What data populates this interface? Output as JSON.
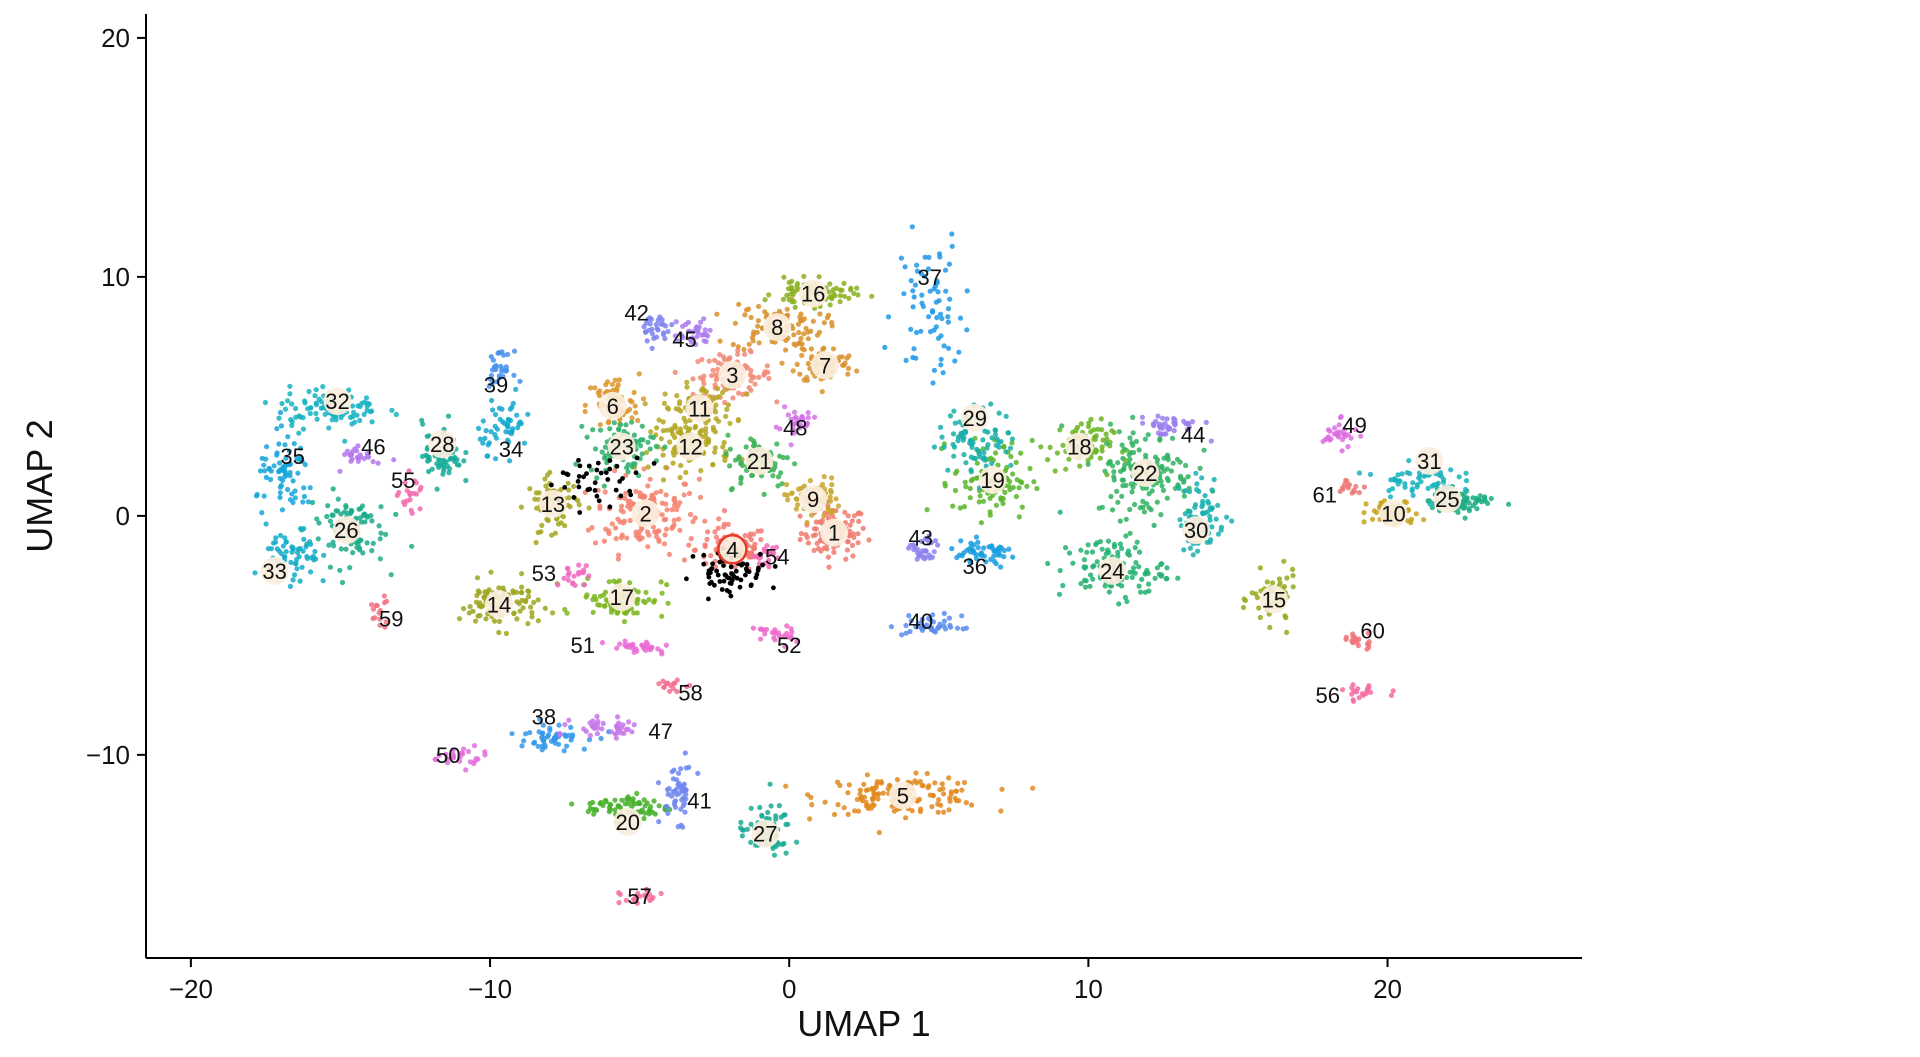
{
  "chart_data": {
    "type": "scatter",
    "title": "",
    "xlabel": "UMAP 1",
    "ylabel": "UMAP 2",
    "xlim": [
      -21.5,
      26.5
    ],
    "ylim": [
      -18.5,
      21
    ],
    "xticks": [
      -20,
      -10,
      0,
      10,
      20
    ],
    "yticks": [
      -10,
      0,
      10,
      20
    ],
    "xtick_labels": [
      "−20",
      "−10",
      "0",
      "10",
      "20"
    ],
    "ytick_labels": [
      "−10",
      "0",
      "10",
      "20"
    ],
    "grid": false,
    "highlighted_cluster": "4",
    "highlight_color": "#e8392a",
    "clusters": [
      {
        "label": "1",
        "x": 1.5,
        "y": -0.7,
        "sx": 1.0,
        "sy": 1.0,
        "n": 90,
        "color": "#f07b6e",
        "badge": true
      },
      {
        "label": "2",
        "x": -4.8,
        "y": 0.1,
        "sx": 1.6,
        "sy": 1.5,
        "n": 150,
        "color": "#f5836f",
        "badge": true
      },
      {
        "label": "3",
        "x": -1.9,
        "y": 5.9,
        "sx": 1.2,
        "sy": 0.8,
        "n": 90,
        "color": "#f18a77",
        "badge": true
      },
      {
        "label": "4",
        "x": -1.9,
        "y": -1.4,
        "sx": 1.1,
        "sy": 0.9,
        "n": 90,
        "color": "#f27c72",
        "badge": true
      },
      {
        "label": "5",
        "x": 3.8,
        "y": -11.7,
        "sx": 2.5,
        "sy": 0.7,
        "n": 140,
        "color": "#e08a1e",
        "badge": true
      },
      {
        "label": "6",
        "x": -5.9,
        "y": 4.6,
        "sx": 0.8,
        "sy": 1.2,
        "n": 70,
        "color": "#d99528",
        "badge": true
      },
      {
        "label": "7",
        "x": 1.2,
        "y": 6.3,
        "sx": 0.9,
        "sy": 0.7,
        "n": 70,
        "color": "#d9912a",
        "badge": true
      },
      {
        "label": "8",
        "x": -0.4,
        "y": 7.9,
        "sx": 1.4,
        "sy": 0.9,
        "n": 100,
        "color": "#d8902c",
        "badge": true
      },
      {
        "label": "9",
        "x": 0.8,
        "y": 0.7,
        "sx": 0.8,
        "sy": 0.8,
        "n": 60,
        "color": "#c9a52b",
        "badge": true
      },
      {
        "label": "10",
        "x": 20.2,
        "y": 0.1,
        "sx": 0.8,
        "sy": 0.5,
        "n": 60,
        "color": "#c6a31f",
        "badge": true
      },
      {
        "label": "11",
        "x": -3.0,
        "y": 4.5,
        "sx": 1.1,
        "sy": 0.9,
        "n": 90,
        "color": "#b5a722",
        "badge": true
      },
      {
        "label": "12",
        "x": -3.3,
        "y": 2.9,
        "sx": 1.2,
        "sy": 0.9,
        "n": 90,
        "color": "#b0a620",
        "badge": true
      },
      {
        "label": "13",
        "x": -7.9,
        "y": 0.5,
        "sx": 0.8,
        "sy": 1.0,
        "n": 70,
        "color": "#a6a51e",
        "badge": true
      },
      {
        "label": "14",
        "x": -9.7,
        "y": -3.7,
        "sx": 1.2,
        "sy": 0.9,
        "n": 90,
        "color": "#9ea51d",
        "badge": true
      },
      {
        "label": "15",
        "x": 16.2,
        "y": -3.5,
        "sx": 0.7,
        "sy": 1.0,
        "n": 60,
        "color": "#93aa1c",
        "badge": true
      },
      {
        "label": "16",
        "x": 0.8,
        "y": 9.3,
        "sx": 1.2,
        "sy": 0.5,
        "n": 80,
        "color": "#8bb020",
        "badge": true
      },
      {
        "label": "17",
        "x": -5.6,
        "y": -3.4,
        "sx": 1.3,
        "sy": 0.8,
        "n": 80,
        "color": "#7cb51e",
        "badge": true
      },
      {
        "label": "18",
        "x": 9.7,
        "y": 2.9,
        "sx": 1.0,
        "sy": 1.0,
        "n": 70,
        "color": "#68b522",
        "badge": true
      },
      {
        "label": "19",
        "x": 6.8,
        "y": 1.5,
        "sx": 1.2,
        "sy": 1.5,
        "n": 90,
        "color": "#58b52a",
        "badge": true
      },
      {
        "label": "20",
        "x": -5.4,
        "y": -12.2,
        "sx": 1.3,
        "sy": 0.5,
        "n": 70,
        "color": "#47b02a",
        "badge": true
      },
      {
        "label": "21",
        "x": -1.0,
        "y": 2.3,
        "sx": 1.0,
        "sy": 1.0,
        "n": 80,
        "color": "#3ab154",
        "badge": true
      },
      {
        "label": "22",
        "x": 11.9,
        "y": 1.8,
        "sx": 1.5,
        "sy": 1.7,
        "n": 140,
        "color": "#2fb25f",
        "badge": true
      },
      {
        "label": "23",
        "x": -5.6,
        "y": 2.9,
        "sx": 1.0,
        "sy": 1.0,
        "n": 80,
        "color": "#2daf6b",
        "badge": true
      },
      {
        "label": "24",
        "x": 10.8,
        "y": -2.2,
        "sx": 1.6,
        "sy": 1.2,
        "n": 110,
        "color": "#22b070",
        "badge": true
      },
      {
        "label": "25",
        "x": 22.5,
        "y": 0.6,
        "sx": 1.0,
        "sy": 0.5,
        "n": 60,
        "color": "#1cad84",
        "badge": true
      },
      {
        "label": "26",
        "x": -14.8,
        "y": -0.5,
        "sx": 1.2,
        "sy": 1.4,
        "n": 90,
        "color": "#1bac88",
        "badge": true
      },
      {
        "label": "27",
        "x": -0.8,
        "y": -13.2,
        "sx": 0.8,
        "sy": 1.0,
        "n": 60,
        "color": "#19aa94",
        "badge": true
      },
      {
        "label": "28",
        "x": -11.6,
        "y": 2.6,
        "sx": 0.6,
        "sy": 1.2,
        "n": 60,
        "color": "#16ac98",
        "badge": true
      },
      {
        "label": "29",
        "x": 6.3,
        "y": 3.2,
        "sx": 1.2,
        "sy": 1.2,
        "n": 80,
        "color": "#18aea9",
        "badge": true
      },
      {
        "label": "30",
        "x": 13.8,
        "y": 0.0,
        "sx": 0.7,
        "sy": 1.5,
        "n": 70,
        "color": "#17b0b0",
        "badge": true
      },
      {
        "label": "31",
        "x": 21.0,
        "y": 1.5,
        "sx": 1.2,
        "sy": 0.6,
        "n": 60,
        "color": "#16b3bd",
        "badge": true
      },
      {
        "label": "32",
        "x": -15.4,
        "y": 4.5,
        "sx": 1.6,
        "sy": 0.8,
        "n": 90,
        "color": "#15b1c2",
        "badge": true
      },
      {
        "label": "33",
        "x": -16.6,
        "y": -1.8,
        "sx": 0.8,
        "sy": 1.2,
        "n": 60,
        "color": "#14abc9",
        "badge": true
      },
      {
        "label": "34",
        "x": -9.5,
        "y": 3.8,
        "sx": 0.8,
        "sy": 1.0,
        "n": 50,
        "color": "#14a8cf",
        "badge": false
      },
      {
        "label": "35",
        "x": -16.8,
        "y": 1.6,
        "sx": 0.9,
        "sy": 1.5,
        "n": 70,
        "color": "#15a4d9",
        "badge": false
      },
      {
        "label": "36",
        "x": 6.5,
        "y": -1.6,
        "sx": 1.1,
        "sy": 0.5,
        "n": 50,
        "color": "#189ee0",
        "badge": false
      },
      {
        "label": "37",
        "x": 4.7,
        "y": 8.8,
        "sx": 1.0,
        "sy": 2.8,
        "n": 70,
        "color": "#1d98e6",
        "badge": false
      },
      {
        "label": "38",
        "x": -8.0,
        "y": -9.2,
        "sx": 1.2,
        "sy": 0.5,
        "n": 50,
        "color": "#3396ea",
        "badge": false
      },
      {
        "label": "39",
        "x": -9.7,
        "y": 6.2,
        "sx": 0.4,
        "sy": 0.6,
        "n": 30,
        "color": "#4690ec",
        "badge": false
      },
      {
        "label": "40",
        "x": 4.8,
        "y": -4.6,
        "sx": 0.9,
        "sy": 0.4,
        "n": 40,
        "color": "#5b8ced",
        "badge": false
      },
      {
        "label": "41",
        "x": -3.7,
        "y": -11.6,
        "sx": 0.5,
        "sy": 1.1,
        "n": 50,
        "color": "#6e86ee",
        "badge": false
      },
      {
        "label": "42",
        "x": -4.5,
        "y": 7.8,
        "sx": 0.6,
        "sy": 0.6,
        "n": 30,
        "color": "#7c83ef",
        "badge": false
      },
      {
        "label": "43",
        "x": 4.5,
        "y": -1.5,
        "sx": 0.4,
        "sy": 0.6,
        "n": 30,
        "color": "#8c82ef",
        "badge": false
      },
      {
        "label": "44",
        "x": 12.7,
        "y": 3.8,
        "sx": 1.0,
        "sy": 0.4,
        "n": 40,
        "color": "#9b7fef",
        "badge": false
      },
      {
        "label": "45",
        "x": -3.2,
        "y": 7.6,
        "sx": 0.6,
        "sy": 0.5,
        "n": 30,
        "color": "#a97bee",
        "badge": false
      },
      {
        "label": "46",
        "x": -14.4,
        "y": 2.6,
        "sx": 0.5,
        "sy": 0.5,
        "n": 25,
        "color": "#b678ec",
        "badge": false
      },
      {
        "label": "47",
        "x": -6.0,
        "y": -8.9,
        "sx": 1.1,
        "sy": 0.4,
        "n": 40,
        "color": "#c675e9",
        "badge": false
      },
      {
        "label": "48",
        "x": 0.2,
        "y": 3.9,
        "sx": 0.6,
        "sy": 0.6,
        "n": 30,
        "color": "#d371e6",
        "badge": false
      },
      {
        "label": "49",
        "x": 18.4,
        "y": 3.4,
        "sx": 0.5,
        "sy": 0.5,
        "n": 30,
        "color": "#dc6fe1",
        "badge": false
      },
      {
        "label": "50",
        "x": -11.0,
        "y": -10.1,
        "sx": 0.8,
        "sy": 0.4,
        "n": 25,
        "color": "#e46ddc",
        "badge": false
      },
      {
        "label": "51",
        "x": -5.0,
        "y": -5.5,
        "sx": 1.0,
        "sy": 0.3,
        "n": 30,
        "color": "#ea6bd5",
        "badge": false
      },
      {
        "label": "52",
        "x": -0.5,
        "y": -5.0,
        "sx": 0.6,
        "sy": 0.4,
        "n": 25,
        "color": "#ee69cc",
        "badge": false
      },
      {
        "label": "53",
        "x": -7.2,
        "y": -2.5,
        "sx": 0.5,
        "sy": 0.4,
        "n": 20,
        "color": "#f068c2",
        "badge": false
      },
      {
        "label": "54",
        "x": -0.8,
        "y": -1.6,
        "sx": 0.4,
        "sy": 0.4,
        "n": 20,
        "color": "#f269b8",
        "badge": false
      },
      {
        "label": "55",
        "x": -12.6,
        "y": 0.8,
        "sx": 0.4,
        "sy": 0.8,
        "n": 20,
        "color": "#f36aad",
        "badge": false
      },
      {
        "label": "56",
        "x": 19.2,
        "y": -7.4,
        "sx": 0.7,
        "sy": 0.3,
        "n": 20,
        "color": "#f46ba3",
        "badge": false
      },
      {
        "label": "57",
        "x": -5.0,
        "y": -16.0,
        "sx": 0.6,
        "sy": 0.3,
        "n": 20,
        "color": "#f46d99",
        "badge": false
      },
      {
        "label": "58",
        "x": -3.9,
        "y": -7.1,
        "sx": 0.5,
        "sy": 0.2,
        "n": 15,
        "color": "#f36f8f",
        "badge": false
      },
      {
        "label": "59",
        "x": -13.7,
        "y": -4.0,
        "sx": 0.3,
        "sy": 0.6,
        "n": 15,
        "color": "#f07285",
        "badge": false
      },
      {
        "label": "60",
        "x": 19.0,
        "y": -5.2,
        "sx": 0.7,
        "sy": 0.3,
        "n": 20,
        "color": "#ee757d",
        "badge": false
      },
      {
        "label": "61",
        "x": 18.8,
        "y": 1.2,
        "sx": 0.4,
        "sy": 0.3,
        "n": 15,
        "color": "#ec7876",
        "badge": false
      }
    ],
    "label_positions": [
      {
        "label": "1",
        "x": 1.5,
        "y": -0.7
      },
      {
        "label": "2",
        "x": -4.8,
        "y": 0.1
      },
      {
        "label": "3",
        "x": -1.9,
        "y": 5.9
      },
      {
        "label": "4",
        "x": -1.9,
        "y": -1.4
      },
      {
        "label": "5",
        "x": 3.8,
        "y": -11.7
      },
      {
        "label": "6",
        "x": -5.9,
        "y": 4.6
      },
      {
        "label": "7",
        "x": 1.2,
        "y": 6.3
      },
      {
        "label": "8",
        "x": -0.4,
        "y": 7.9
      },
      {
        "label": "9",
        "x": 0.8,
        "y": 0.7
      },
      {
        "label": "10",
        "x": 20.2,
        "y": 0.1
      },
      {
        "label": "11",
        "x": -3.0,
        "y": 4.5
      },
      {
        "label": "12",
        "x": -3.3,
        "y": 2.9
      },
      {
        "label": "13",
        "x": -7.9,
        "y": 0.5
      },
      {
        "label": "14",
        "x": -9.7,
        "y": -3.7
      },
      {
        "label": "15",
        "x": 16.2,
        "y": -3.5
      },
      {
        "label": "16",
        "x": 0.8,
        "y": 9.3
      },
      {
        "label": "17",
        "x": -5.6,
        "y": -3.4
      },
      {
        "label": "18",
        "x": 9.7,
        "y": 2.9
      },
      {
        "label": "19",
        "x": 6.8,
        "y": 1.5
      },
      {
        "label": "20",
        "x": -5.4,
        "y": -12.8
      },
      {
        "label": "21",
        "x": -1.0,
        "y": 2.3
      },
      {
        "label": "22",
        "x": 11.9,
        "y": 1.8
      },
      {
        "label": "23",
        "x": -5.6,
        "y": 2.9
      },
      {
        "label": "24",
        "x": 10.8,
        "y": -2.3
      },
      {
        "label": "25",
        "x": 22.0,
        "y": 0.7
      },
      {
        "label": "26",
        "x": -14.8,
        "y": -0.6
      },
      {
        "label": "27",
        "x": -0.8,
        "y": -13.3
      },
      {
        "label": "28",
        "x": -11.6,
        "y": 3.0
      },
      {
        "label": "29",
        "x": 6.2,
        "y": 4.1
      },
      {
        "label": "30",
        "x": 13.6,
        "y": -0.6
      },
      {
        "label": "31",
        "x": 21.4,
        "y": 2.3
      },
      {
        "label": "32",
        "x": -15.1,
        "y": 4.8
      },
      {
        "label": "33",
        "x": -17.2,
        "y": -2.3
      },
      {
        "label": "34",
        "x": -9.3,
        "y": 2.8
      },
      {
        "label": "35",
        "x": -16.6,
        "y": 2.5
      },
      {
        "label": "36",
        "x": 6.2,
        "y": -2.1
      },
      {
        "label": "37",
        "x": 4.7,
        "y": 10.0
      },
      {
        "label": "38",
        "x": -8.2,
        "y": -8.4
      },
      {
        "label": "39",
        "x": -9.8,
        "y": 5.5
      },
      {
        "label": "40",
        "x": 4.4,
        "y": -4.4
      },
      {
        "label": "41",
        "x": -3.0,
        "y": -11.9
      },
      {
        "label": "42",
        "x": -5.1,
        "y": 8.5
      },
      {
        "label": "43",
        "x": 4.4,
        "y": -0.9
      },
      {
        "label": "44",
        "x": 13.5,
        "y": 3.4
      },
      {
        "label": "45",
        "x": -3.5,
        "y": 7.4
      },
      {
        "label": "46",
        "x": -13.9,
        "y": 2.9
      },
      {
        "label": "47",
        "x": -4.3,
        "y": -9.0
      },
      {
        "label": "48",
        "x": 0.2,
        "y": 3.7
      },
      {
        "label": "49",
        "x": 18.9,
        "y": 3.8
      },
      {
        "label": "50",
        "x": -11.4,
        "y": -10.0
      },
      {
        "label": "51",
        "x": -6.9,
        "y": -5.4
      },
      {
        "label": "52",
        "x": 0.0,
        "y": -5.4
      },
      {
        "label": "53",
        "x": -8.2,
        "y": -2.4
      },
      {
        "label": "54",
        "x": -0.4,
        "y": -1.7
      },
      {
        "label": "55",
        "x": -12.9,
        "y": 1.5
      },
      {
        "label": "56",
        "x": 18.0,
        "y": -7.5
      },
      {
        "label": "57",
        "x": -5.0,
        "y": -15.9
      },
      {
        "label": "58",
        "x": -3.3,
        "y": -7.4
      },
      {
        "label": "59",
        "x": -13.3,
        "y": -4.3
      },
      {
        "label": "60",
        "x": 19.5,
        "y": -4.8
      },
      {
        "label": "61",
        "x": 17.9,
        "y": 0.9
      }
    ],
    "highlighted_points_color": "#000000"
  }
}
